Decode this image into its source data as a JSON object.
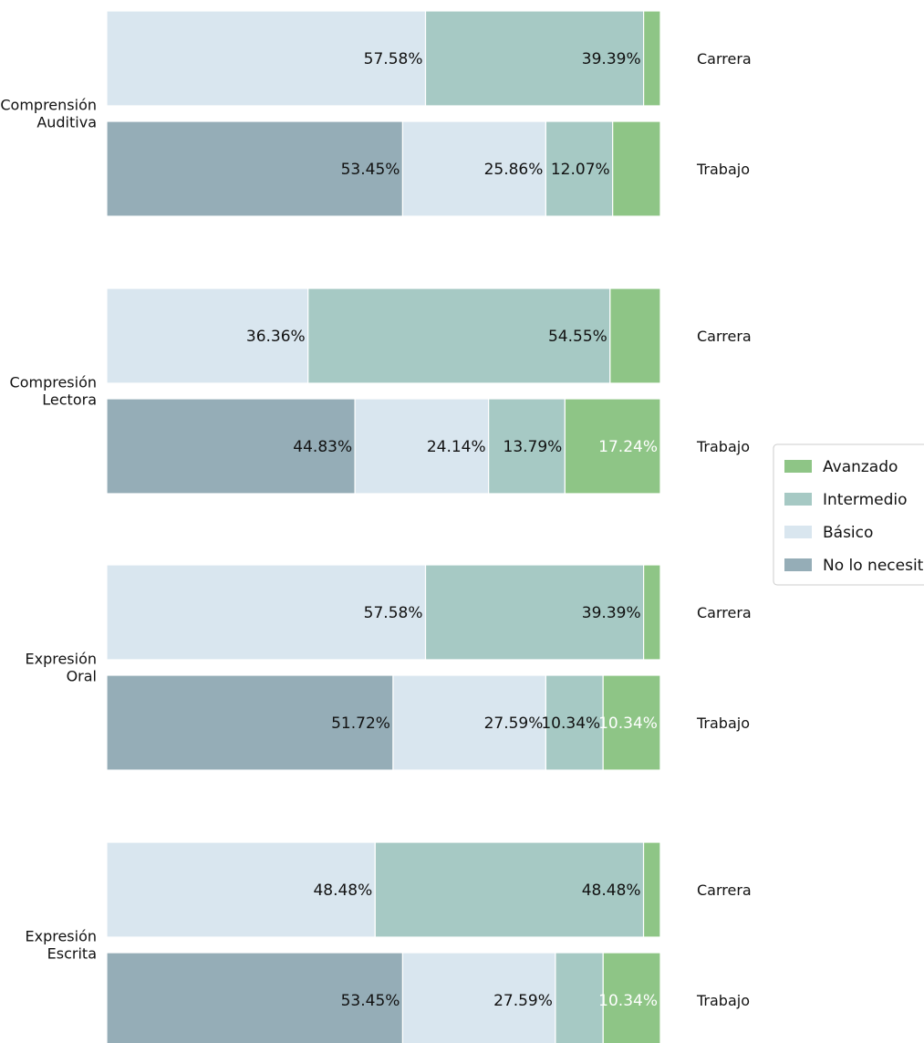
{
  "chart_data": {
    "type": "bar",
    "orientation": "horizontal",
    "stacked": true,
    "xlim": [
      0,
      100
    ],
    "grid": false,
    "legend_position": "center-right",
    "legend": [
      "Avanzado",
      "Intermedio",
      "Básico",
      "No lo necesita"
    ],
    "series_order": [
      "No lo necesita",
      "Básico",
      "Intermedio",
      "Avanzado"
    ],
    "colors": {
      "No lo necesita": "#95adb7",
      "Básico": "#d9e6ef",
      "Intermedio": "#a6c9c4",
      "Avanzado": "#8ec586"
    },
    "groups": [
      {
        "label_line1": "Comprensión",
        "label_line2": "Auditiva",
        "rows": [
          {
            "name": "Carrera",
            "values": [
              0,
              57.58,
              39.39,
              3.03
            ],
            "labels": [
              "",
              "57.58%",
              "39.39%",
              ""
            ]
          },
          {
            "name": "Trabajo",
            "values": [
              53.45,
              25.86,
              12.07,
              8.62
            ],
            "labels": [
              "53.45%",
              "25.86%",
              "12.07%",
              ""
            ]
          }
        ]
      },
      {
        "label_line1": "Compresión",
        "label_line2": "Lectora",
        "rows": [
          {
            "name": "Carrera",
            "values": [
              0,
              36.36,
              54.55,
              9.09
            ],
            "labels": [
              "",
              "36.36%",
              "54.55%",
              ""
            ]
          },
          {
            "name": "Trabajo",
            "values": [
              44.83,
              24.14,
              13.79,
              17.24
            ],
            "labels": [
              "44.83%",
              "24.14%",
              "13.79%",
              "17.24%"
            ]
          }
        ]
      },
      {
        "label_line1": "Expresión",
        "label_line2": "Oral",
        "rows": [
          {
            "name": "Carrera",
            "values": [
              0,
              57.58,
              39.39,
              3.03
            ],
            "labels": [
              "",
              "57.58%",
              "39.39%",
              ""
            ]
          },
          {
            "name": "Trabajo",
            "values": [
              51.72,
              27.59,
              10.34,
              10.34
            ],
            "labels": [
              "51.72%",
              "27.59%",
              "10.34%",
              "10.34%"
            ]
          }
        ]
      },
      {
        "label_line1": "Expresión",
        "label_line2": "Escrita",
        "rows": [
          {
            "name": "Carrera",
            "values": [
              0,
              48.48,
              48.48,
              3.03
            ],
            "labels": [
              "",
              "48.48%",
              "48.48%",
              ""
            ]
          },
          {
            "name": "Trabajo",
            "values": [
              53.45,
              27.59,
              8.62,
              10.34
            ],
            "labels": [
              "53.45%",
              "27.59%",
              "",
              "10.34%"
            ]
          }
        ]
      }
    ]
  }
}
